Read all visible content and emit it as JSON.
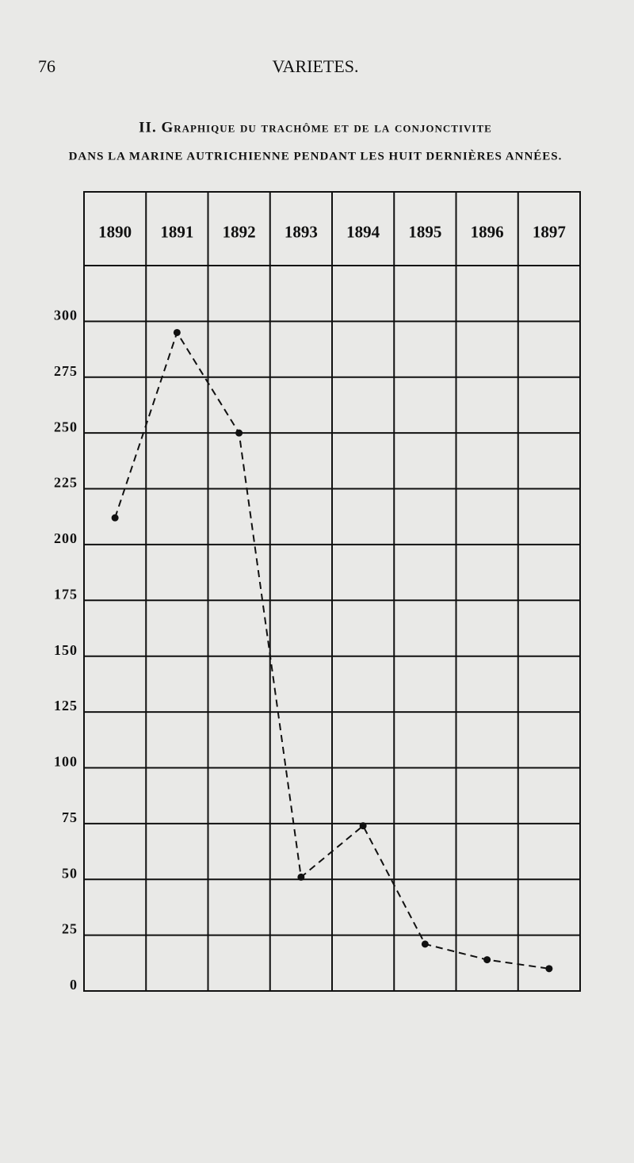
{
  "page_number": "76",
  "running_head": "VARIETES.",
  "chart_data": {
    "type": "line",
    "title": "II. Graphique du trachôme et de la conjonctivite",
    "subtitle": "dans la marine autrichienne pendant les huit dernières années.",
    "categories": [
      "1890",
      "1891",
      "1892",
      "1893",
      "1894",
      "1895",
      "1896",
      "1897"
    ],
    "values": [
      212,
      295,
      250,
      51,
      74,
      21,
      14,
      10
    ],
    "color": "#111111",
    "ylim": [
      0,
      325
    ],
    "yticks": [
      0,
      25,
      50,
      75,
      100,
      125,
      150,
      175,
      200,
      225,
      250,
      275,
      300
    ],
    "grid": true
  }
}
